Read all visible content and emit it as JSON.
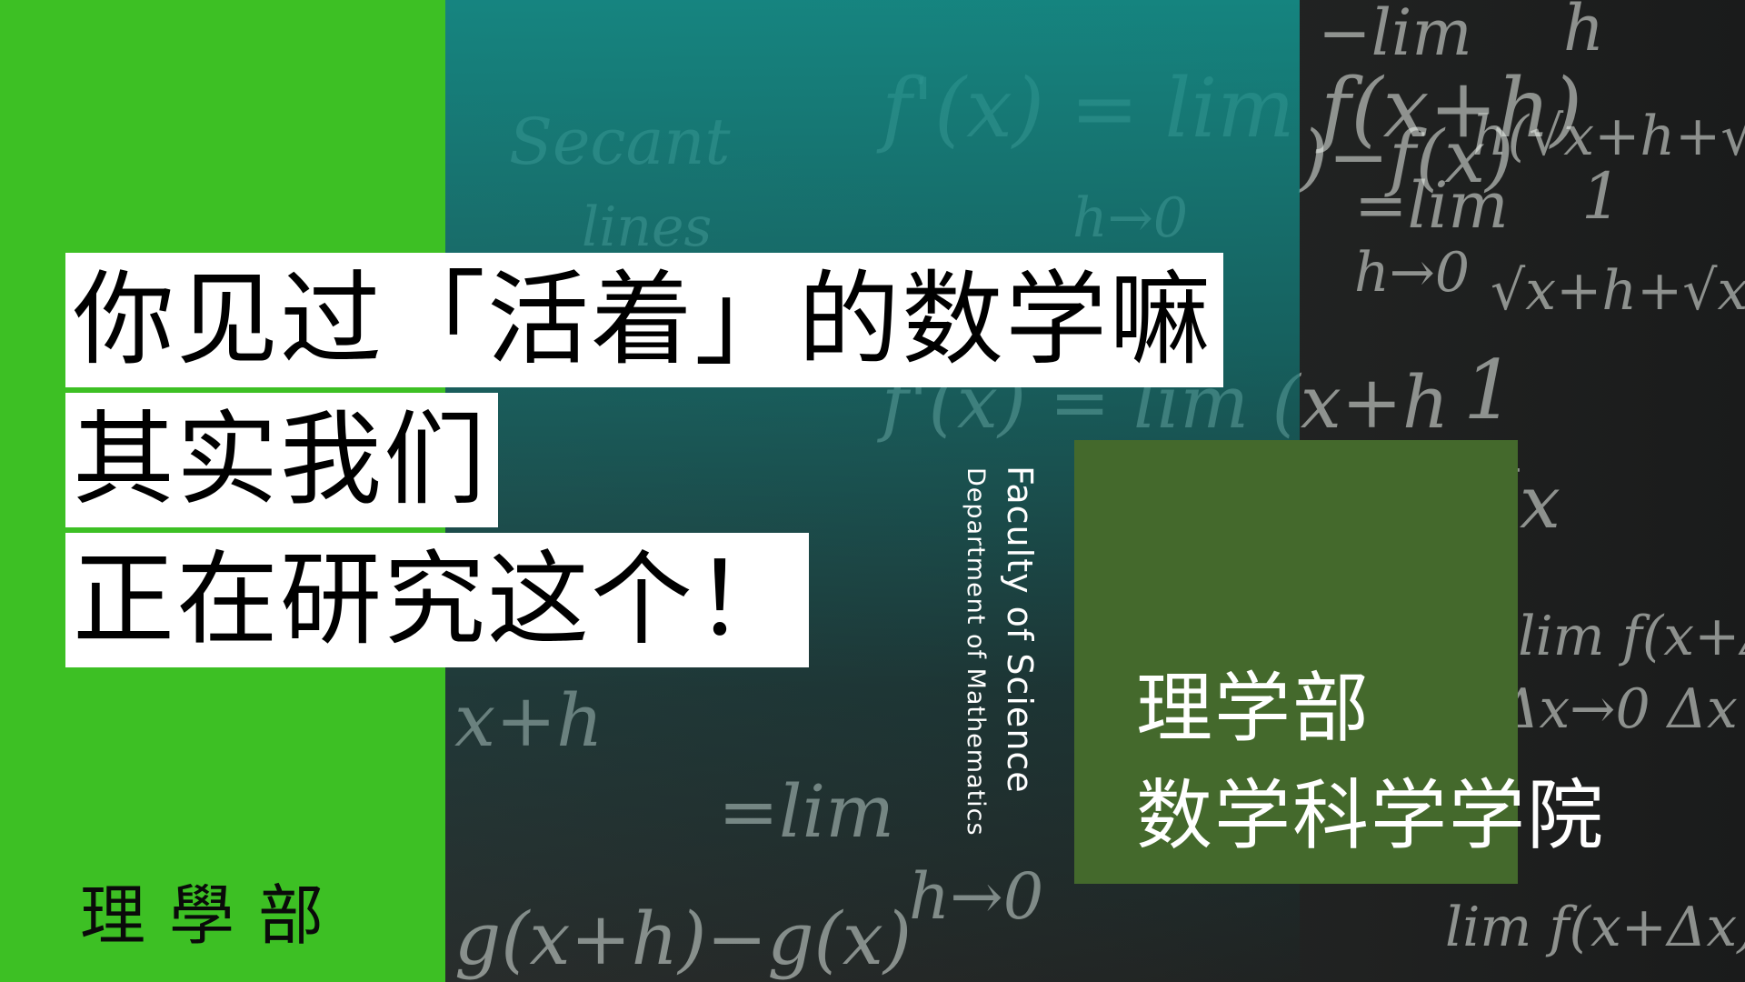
{
  "colors": {
    "left_panel": "#3dc024",
    "box": "#44692c",
    "chalk": "#e8efe8"
  },
  "headline": {
    "line1": "你见过「活着」的数学嘛",
    "line2": "其实我们",
    "line3": "正在研究这个！"
  },
  "vertical": {
    "faculty_en": "Faculty of Science",
    "department_en": "Department of Mathematics"
  },
  "box": {
    "line1": "理学部",
    "line2": "数学科学学院"
  },
  "seal": {
    "text": "理學部"
  }
}
